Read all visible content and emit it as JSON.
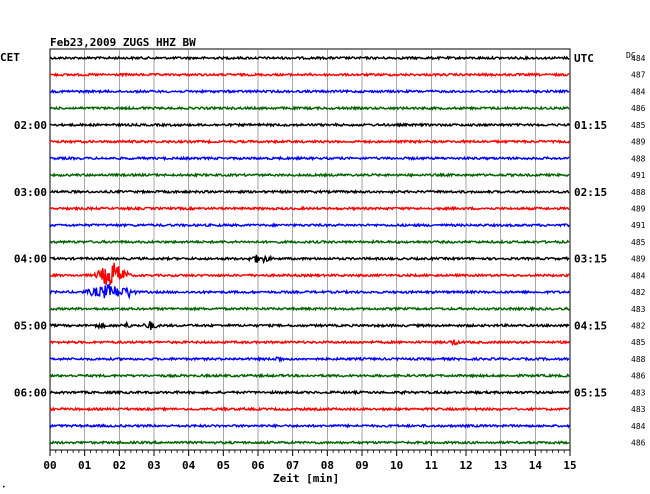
{
  "header": {
    "title": "Feb23,2009   ZUGS HHZ BW"
  },
  "labels": {
    "left_tz": "CET",
    "right_tz": "UTC",
    "dc_header": "DC",
    "corner_mark": "•"
  },
  "chart_data": {
    "type": "line",
    "title": "Feb23,2009   ZUGS HHZ BW",
    "xlabel": "Zeit [min]",
    "xlim": [
      0,
      15
    ],
    "x_ticks": [
      "00",
      "01",
      "02",
      "03",
      "04",
      "05",
      "06",
      "07",
      "08",
      "09",
      "10",
      "11",
      "12",
      "13",
      "14",
      "15"
    ],
    "grid": true,
    "trace_colors": [
      "#000000",
      "#ff0000",
      "#0000ff",
      "#006400"
    ],
    "left_time_labels": [
      {
        "trace": 4,
        "label": "02:00"
      },
      {
        "trace": 8,
        "label": "03:00"
      },
      {
        "trace": 12,
        "label": "04:00"
      },
      {
        "trace": 16,
        "label": "05:00"
      },
      {
        "trace": 20,
        "label": "06:00"
      }
    ],
    "right_time_labels": [
      {
        "trace": 0,
        "label": "UTC"
      },
      {
        "trace": 4,
        "label": "01:15"
      },
      {
        "trace": 8,
        "label": "02:15"
      },
      {
        "trace": 12,
        "label": "03:15"
      },
      {
        "trace": 16,
        "label": "04:15"
      },
      {
        "trace": 20,
        "label": "05:15"
      }
    ],
    "dc_values": [
      484,
      487,
      484,
      486,
      485,
      489,
      488,
      491,
      488,
      489,
      491,
      485,
      489,
      484,
      482,
      483,
      482,
      485,
      488,
      486,
      483,
      483,
      484,
      486
    ],
    "events": [
      {
        "trace": 13,
        "minute": 1.8,
        "amplitude": 14,
        "duration": 0.6
      },
      {
        "trace": 14,
        "minute": 1.7,
        "amplitude": 8,
        "duration": 0.9
      },
      {
        "trace": 14,
        "minute": 2.25,
        "amplitude": 7,
        "duration": 0.3
      },
      {
        "trace": 12,
        "minute": 6.05,
        "amplitude": 5,
        "duration": 0.5
      },
      {
        "trace": 16,
        "minute": 1.45,
        "amplitude": 3,
        "duration": 0.3
      },
      {
        "trace": 16,
        "minute": 2.2,
        "amplitude": 3,
        "duration": 0.3
      },
      {
        "trace": 16,
        "minute": 2.9,
        "amplitude": 5,
        "duration": 0.3
      },
      {
        "trace": 17,
        "minute": 11.65,
        "amplitude": 4,
        "duration": 0.2
      },
      {
        "trace": 18,
        "minute": 6.6,
        "amplitude": 4,
        "duration": 0.2
      },
      {
        "trace": 21,
        "minute": 5.0,
        "amplitude": 3,
        "duration": 0.2
      },
      {
        "trace": 3,
        "minute": 2.7,
        "amplitude": 2,
        "duration": 0.2
      },
      {
        "trace": 20,
        "minute": 10.2,
        "amplitude": 2,
        "duration": 0.2
      }
    ]
  }
}
